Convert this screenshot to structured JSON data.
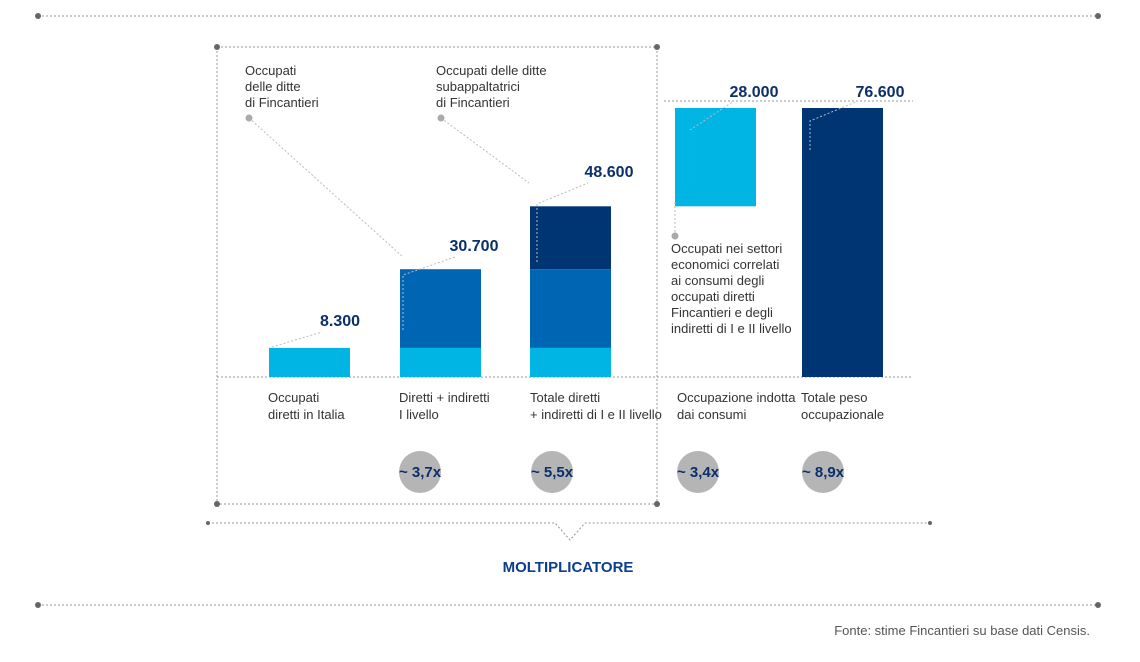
{
  "colors": {
    "diretti": "#00b4e4",
    "indiretti_I": "#0066b3",
    "indiretti_II": "#003574",
    "indotta": "#00b4e4",
    "totale": "#003574",
    "circle": "#b5b5b5",
    "dotted": "#999999",
    "value_text": "#0b2f6b"
  },
  "chart_data": {
    "type": "bar",
    "stacked": true,
    "categories": [
      "Occupati diretti in Italia",
      "Diretti + indiretti I livello",
      "Totale diretti + indiretti di I e II livello",
      "Occupazione indotta dai consumi",
      "Totale peso occupazionale"
    ],
    "category_label_lines": [
      [
        "Occupati",
        "diretti in Italia"
      ],
      [
        "Diretti + indiretti",
        "I livello"
      ],
      [
        "Totale diretti",
        "+ indiretti di I e II livello"
      ],
      [
        "Occupazione indotta",
        "dai consumi"
      ],
      [
        "Totale peso",
        "occupazionale"
      ]
    ],
    "totals": [
      8300,
      30700,
      48600,
      28000,
      76600
    ],
    "total_labels": [
      "8.300",
      "30.700",
      "48.600",
      "28.000",
      "76.600"
    ],
    "bars": [
      {
        "segments": [
          {
            "from": 0,
            "to": 8300,
            "color": "#00b4e4"
          }
        ]
      },
      {
        "segments": [
          {
            "from": 0,
            "to": 8300,
            "color": "#00b4e4"
          },
          {
            "from": 8300,
            "to": 30700,
            "color": "#0066b3"
          }
        ]
      },
      {
        "segments": [
          {
            "from": 0,
            "to": 8300,
            "color": "#00b4e4"
          },
          {
            "from": 8300,
            "to": 30700,
            "color": "#0066b3"
          },
          {
            "from": 30700,
            "to": 48600,
            "color": "#003574"
          }
        ]
      },
      {
        "segments": [
          {
            "from": 48600,
            "to": 76600,
            "color": "#00b4e4"
          }
        ]
      },
      {
        "segments": [
          {
            "from": 0,
            "to": 76600,
            "color": "#003574"
          }
        ]
      }
    ],
    "multipliers": [
      "",
      "~ 3,7x",
      "~ 5,5x",
      "~ 3,4x",
      "~ 8,9x"
    ],
    "ylim": [
      0,
      80000
    ],
    "annotations": [
      {
        "lines": [
          "Occupati",
          "delle ditte",
          "di Fincantieri"
        ]
      },
      {
        "lines": [
          "Occupati delle ditte",
          "subappaltatrici",
          "di Fincantieri"
        ]
      },
      {
        "lines": [
          "Occupati nei settori",
          "economici correlati",
          "ai consumi degli",
          "occupati diretti",
          "Fincantieri e degli",
          "indiretti di I e II livello"
        ]
      }
    ],
    "group_label": "MOLTIPLICATORE",
    "source": "Fonte: stime Fincantieri su base dati Censis."
  }
}
